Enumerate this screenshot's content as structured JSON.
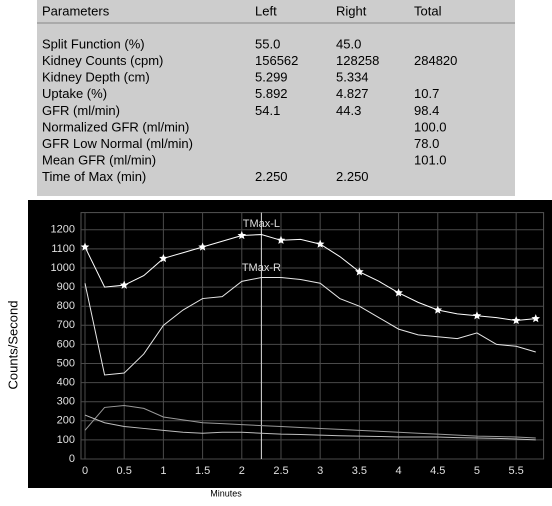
{
  "table": {
    "columns": [
      "Parameters",
      "Left",
      "Right",
      "Total"
    ],
    "rows": [
      [
        "Split Function (%)",
        "55.0",
        "45.0",
        null
      ],
      [
        "Kidney Counts (cpm)",
        "156562",
        "128258",
        "284820"
      ],
      [
        "Kidney Depth (cm)",
        "5.299",
        "5.334",
        null
      ],
      [
        "Uptake (%)",
        "5.892",
        "4.827",
        "10.7"
      ],
      [
        "GFR (ml/min)",
        "54.1",
        "44.3",
        "98.4"
      ],
      [
        "Normalized GFR (ml/min)",
        null,
        null,
        "100.0"
      ],
      [
        "GFR Low Normal (ml/min)",
        null,
        null,
        "78.0"
      ],
      [
        "Mean GFR (ml/min)",
        null,
        null,
        "101.0"
      ],
      [
        "Time of Max (min)",
        "2.250",
        "2.250",
        null
      ]
    ]
  },
  "chart_data": {
    "type": "line",
    "x_label": "Minutes",
    "y_label": "Counts/Second",
    "x": [
      0,
      0.25,
      0.5,
      0.75,
      1,
      1.25,
      1.5,
      1.75,
      2,
      2.25,
      2.5,
      2.75,
      3,
      3.25,
      3.5,
      3.75,
      4,
      4.25,
      4.5,
      4.75,
      5,
      5.25,
      5.5,
      5.75
    ],
    "series": [
      {
        "color": "#ffffff",
        "values": [
          1110,
          900,
          910,
          960,
          1050,
          1080,
          1110,
          1140,
          1170,
          1175,
          1145,
          1150,
          1125,
          1060,
          980,
          930,
          870,
          820,
          780,
          760,
          750,
          740,
          725,
          735
        ]
      },
      {
        "color": "#e6e6e6",
        "values": [
          920,
          440,
          450,
          550,
          700,
          780,
          840,
          850,
          930,
          950,
          950,
          940,
          920,
          840,
          800,
          740,
          680,
          650,
          640,
          630,
          660,
          600,
          590,
          560
        ]
      },
      {
        "color": "#9a9a9a",
        "values": [
          150,
          270,
          280,
          265,
          220,
          205,
          190,
          185,
          180,
          175,
          170,
          165,
          160,
          155,
          150,
          145,
          140,
          135,
          130,
          125,
          120,
          118,
          115,
          110
        ]
      },
      {
        "color": "#bdbdbd",
        "values": [
          230,
          190,
          170,
          160,
          150,
          140,
          135,
          140,
          140,
          135,
          130,
          128,
          125,
          122,
          120,
          118,
          115,
          115,
          115,
          112,
          110,
          108,
          105,
          100
        ]
      }
    ],
    "annotations": [
      {
        "text": "TMax-L",
        "x": 2.25,
        "y": 1230
      },
      {
        "text": "TMax-R",
        "x": 2.25,
        "y": 1000
      }
    ],
    "xlim": [
      0,
      5.85
    ],
    "ylim": [
      0,
      1290
    ],
    "xticks": [
      0,
      0.5,
      1,
      1.5,
      2,
      2.5,
      3,
      3.5,
      4,
      4.5,
      5,
      5.5
    ],
    "yticks": [
      0,
      100,
      200,
      300,
      400,
      500,
      600,
      700,
      800,
      900,
      1000,
      1100,
      1200
    ],
    "grid": true
  }
}
